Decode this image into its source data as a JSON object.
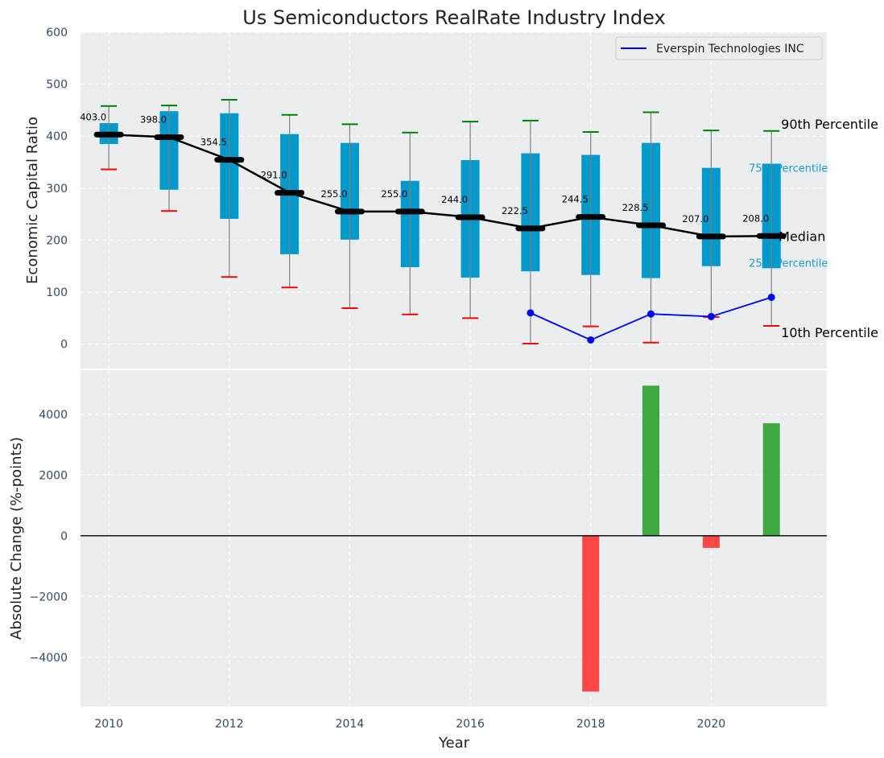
{
  "chart_data": [
    {
      "type": "box",
      "title": "Us Semiconductors RealRate Industry Index",
      "xlabel": "",
      "ylabel": "Economic Capital Ratio",
      "ylim": [
        -47,
        600
      ],
      "yticks": [
        0,
        100,
        200,
        300,
        400,
        500,
        600
      ],
      "grid": true,
      "x": [
        2010,
        2011,
        2012,
        2013,
        2014,
        2015,
        2016,
        2017,
        2018,
        2019,
        2020,
        2021
      ],
      "median": [
        403.0,
        398.0,
        354.5,
        291.0,
        255.0,
        255.0,
        244.0,
        222.5,
        244.5,
        228.5,
        207.0,
        208.0
      ],
      "median_labels": [
        "403.0",
        "398.0",
        "354.5",
        "291.0",
        "255.0",
        "255.0",
        "244.0",
        "222.5",
        "244.5",
        "228.5",
        "207.0",
        "208.0"
      ],
      "p90": [
        458,
        459,
        470,
        441,
        423,
        407,
        428,
        430,
        408,
        446,
        411,
        410
      ],
      "p75": [
        425,
        448,
        444,
        404,
        387,
        314,
        354,
        367,
        364,
        387,
        339,
        347
      ],
      "p25": [
        385,
        297,
        241,
        173,
        201,
        148,
        128,
        140,
        133,
        127,
        150,
        146
      ],
      "p10": [
        336,
        256,
        129,
        109,
        69,
        57,
        50,
        1,
        34,
        3,
        52,
        35
      ],
      "series": [
        {
          "name": "Everspin Technologies INC",
          "x": [
            2017,
            2018,
            2019,
            2020,
            2021
          ],
          "values": [
            60,
            8,
            58,
            53,
            90
          ],
          "color": "#0000ff"
        }
      ],
      "legend": {
        "entries": [
          "Everspin Technologies INC"
        ],
        "placement": "top-right"
      },
      "annotations": {
        "p90": "90th Percentile",
        "p75": "75th Percentile",
        "median": "Median",
        "p25": "25th Percentile",
        "p10": "10th Percentile"
      },
      "colors": {
        "box": "#0099cc",
        "median": "#000000",
        "p90_cap": "#008000",
        "p10_cap": "#ff0000",
        "whisker": "#808080",
        "pct_small_label": "#1f9ac9"
      }
    },
    {
      "type": "bar",
      "xlabel": "Year",
      "ylabel": "Absolute Change (%-points)",
      "ylim": [
        -5620,
        5450
      ],
      "yticks": [
        -4000,
        -2000,
        0,
        2000,
        4000
      ],
      "ytick_labels": [
        "−4000",
        "−2000",
        "0",
        "2000",
        "4000"
      ],
      "xlim": [
        2009.53,
        2021.92
      ],
      "xticks": [
        2010,
        2012,
        2014,
        2016,
        2018,
        2020
      ],
      "xtick_labels": [
        "2010",
        "2012",
        "2014",
        "2016",
        "2018",
        "2020"
      ],
      "grid": true,
      "categories": [
        2018,
        2019,
        2020,
        2021
      ],
      "values": [
        -5130,
        4940,
        -400,
        3700
      ],
      "colors": {
        "positive": "#2ca02c",
        "negative": "#ff3333",
        "zero_line": "#000000"
      }
    }
  ],
  "top_ytick_labels": [
    "0",
    "100",
    "200",
    "300",
    "400",
    "500",
    "600"
  ]
}
